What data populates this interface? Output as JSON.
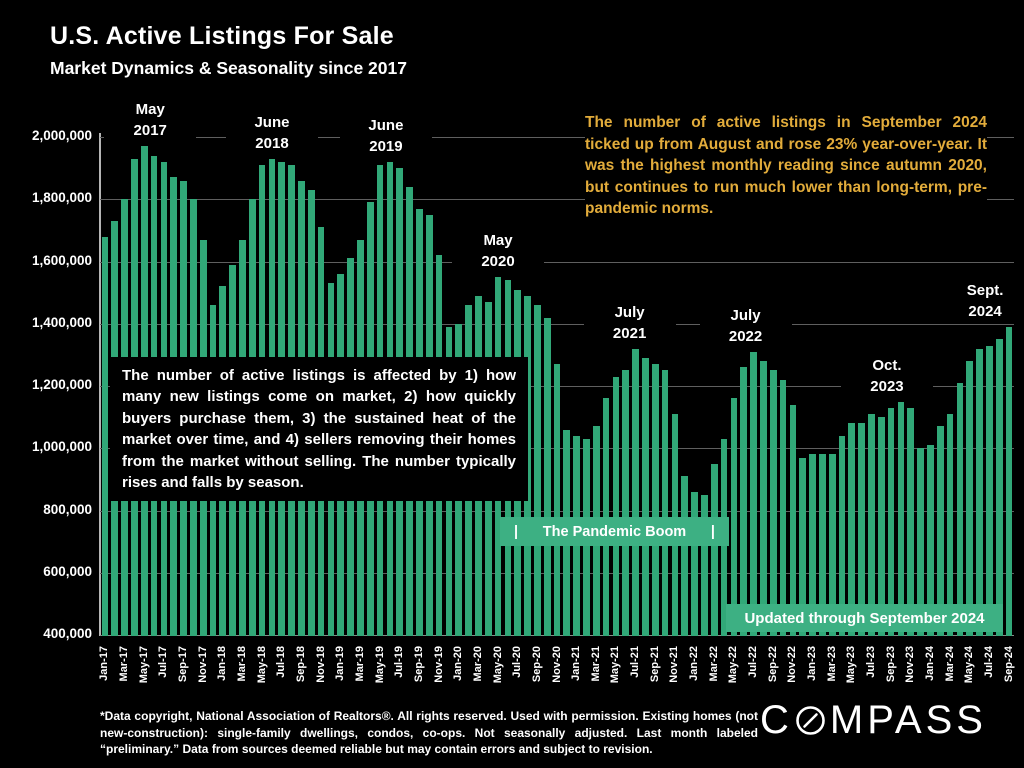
{
  "header": {
    "title": "U.S. Active Listings For Sale",
    "subtitle": "Market Dynamics & Seasonality since 2017"
  },
  "colors": {
    "background": "#000000",
    "bar_green": "#31a878",
    "banner_green": "#3db083",
    "note_yellow": "#e2ac3b",
    "text_white": "#ffffff",
    "gridline_gray": "#5f5f5f"
  },
  "chart_data": {
    "type": "bar",
    "title": "U.S. Active Listings For Sale",
    "xlabel": "",
    "ylabel": "",
    "ylim": [
      400000,
      2050000
    ],
    "grid": "horizontal-200k",
    "legend": "none",
    "y_tick_labels": [
      "2,000,000",
      "1,800,000",
      "1,600,000",
      "1,400,000",
      "1,200,000",
      "1,000,000",
      "800,000",
      "600,000",
      "400,000"
    ],
    "x_tick_note": "every second month labeled, rotated 90°",
    "categories": [
      "Jan-17",
      "Feb-17",
      "Mar-17",
      "Apr-17",
      "May-17",
      "Jun-17",
      "Jul-17",
      "Aug-17",
      "Sep-17",
      "Oct-17",
      "Nov-17",
      "Dec-17",
      "Jan-18",
      "Feb-18",
      "Mar-18",
      "Apr-18",
      "May-18",
      "Jun-18",
      "Jul-18",
      "Aug-18",
      "Sep-18",
      "Oct-18",
      "Nov-18",
      "Dec-18",
      "Jan-19",
      "Feb-19",
      "Mar-19",
      "Apr-19",
      "May-19",
      "Jun-19",
      "Jul-19",
      "Aug-19",
      "Sep-19",
      "Oct-19",
      "Nov-19",
      "Dec-19",
      "Jan-20",
      "Feb-20",
      "Mar-20",
      "Apr-20",
      "May-20",
      "Jun-20",
      "Jul-20",
      "Aug-20",
      "Sep-20",
      "Oct-20",
      "Nov-20",
      "Dec-20",
      "Jan-21",
      "Feb-21",
      "Mar-21",
      "Apr-21",
      "May-21",
      "Jun-21",
      "Jul-21",
      "Aug-21",
      "Sep-21",
      "Oct-21",
      "Nov-21",
      "Dec-21",
      "Jan-22",
      "Feb-22",
      "Mar-22",
      "Apr-22",
      "May-22",
      "Jun-22",
      "Jul-22",
      "Aug-22",
      "Sep-22",
      "Oct-22",
      "Nov-22",
      "Dec-22",
      "Jan-23",
      "Feb-23",
      "Mar-23",
      "Apr-23",
      "May-23",
      "Jun-23",
      "Jul-23",
      "Aug-23",
      "Sep-23",
      "Oct-23",
      "Nov-23",
      "Dec-23",
      "Jan-24",
      "Feb-24",
      "Mar-24",
      "Apr-24",
      "May-24",
      "Jun-24",
      "Jul-24",
      "Aug-24",
      "Sep-24"
    ],
    "values": [
      1680000,
      1730000,
      1800000,
      1930000,
      1970000,
      1940000,
      1920000,
      1870000,
      1860000,
      1800000,
      1670000,
      1460000,
      1520000,
      1590000,
      1670000,
      1800000,
      1910000,
      1930000,
      1920000,
      1910000,
      1860000,
      1830000,
      1710000,
      1530000,
      1560000,
      1610000,
      1670000,
      1790000,
      1910000,
      1920000,
      1900000,
      1840000,
      1770000,
      1750000,
      1620000,
      1390000,
      1400000,
      1460000,
      1490000,
      1470000,
      1550000,
      1540000,
      1510000,
      1490000,
      1460000,
      1420000,
      1270000,
      1060000,
      1040000,
      1030000,
      1070000,
      1160000,
      1230000,
      1250000,
      1320000,
      1290000,
      1270000,
      1250000,
      1110000,
      910000,
      860000,
      850000,
      950000,
      1030000,
      1160000,
      1260000,
      1310000,
      1280000,
      1250000,
      1220000,
      1140000,
      970000,
      980000,
      980000,
      980000,
      1040000,
      1080000,
      1080000,
      1110000,
      1100000,
      1130000,
      1150000,
      1130000,
      1000000,
      1010000,
      1070000,
      1110000,
      1210000,
      1280000,
      1320000,
      1330000,
      1350000,
      1390000
    ]
  },
  "annotations": {
    "peaks": [
      {
        "line1": "May",
        "line2": "2017"
      },
      {
        "line1": "June",
        "line2": "2018"
      },
      {
        "line1": "June",
        "line2": "2019"
      },
      {
        "line1": "May",
        "line2": "2020"
      },
      {
        "line1": "July",
        "line2": "2021"
      },
      {
        "line1": "July",
        "line2": "2022"
      },
      {
        "line1": "Oct.",
        "line2": "2023"
      },
      {
        "line1": "Sept.",
        "line2": "2024"
      }
    ],
    "yellow_note": "The number of active listings in September 2024 ticked up from August and rose 23% year-over-year. It was the highest monthly reading since autumn 2020, but continues to run much lower than long-term, pre-pandemic norms.",
    "explainer": "The number of active listings is affected by 1) how many new listings come on market, 2) how quickly buyers purchase them, 3) the sustained heat of the market over time, and 4) sellers removing their homes from the market without selling. The number typically rises and falls by season.",
    "pandemic_banner": {
      "left_pipe": "|",
      "label": "The Pandemic Boom",
      "right_pipe": "|"
    },
    "updated_banner": "Updated through September 2024"
  },
  "footer": {
    "disclaimer": "*Data copyright, National Association of Realtors®. All rights reserved. Used with permission. Existing homes (not new-construction): single-family dwellings, condos, co-ops. Not seasonally adjusted. Last month labeled “preliminary.” Data from sources deemed reliable but may contain errors and subject to revision.",
    "logo_prefix": "C",
    "logo_suffix": "MPASS"
  }
}
